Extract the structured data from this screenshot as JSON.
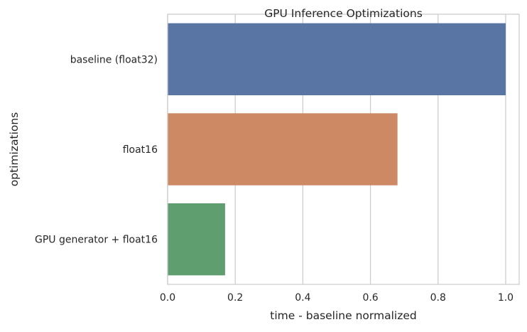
{
  "chart_data": {
    "type": "bar",
    "orientation": "horizontal",
    "title": "GPU Inference Optimizations",
    "xlabel": "time - baseline normalized",
    "ylabel": "optimizations",
    "categories": [
      "baseline (float32)",
      "float16",
      "GPU generator + float16"
    ],
    "values": [
      1.0,
      0.68,
      0.17
    ],
    "colors": [
      "#5875a4",
      "#cc8963",
      "#5f9e6e"
    ],
    "xlim": [
      0,
      1.04
    ],
    "xticks": [
      0.0,
      0.2,
      0.4,
      0.6,
      0.8,
      1.0
    ],
    "xtick_labels": [
      "0.0",
      "0.2",
      "0.4",
      "0.6",
      "0.8",
      "1.0"
    ],
    "grid": "vertical",
    "grid_color": "#cccccc",
    "background": "#ffffff"
  }
}
